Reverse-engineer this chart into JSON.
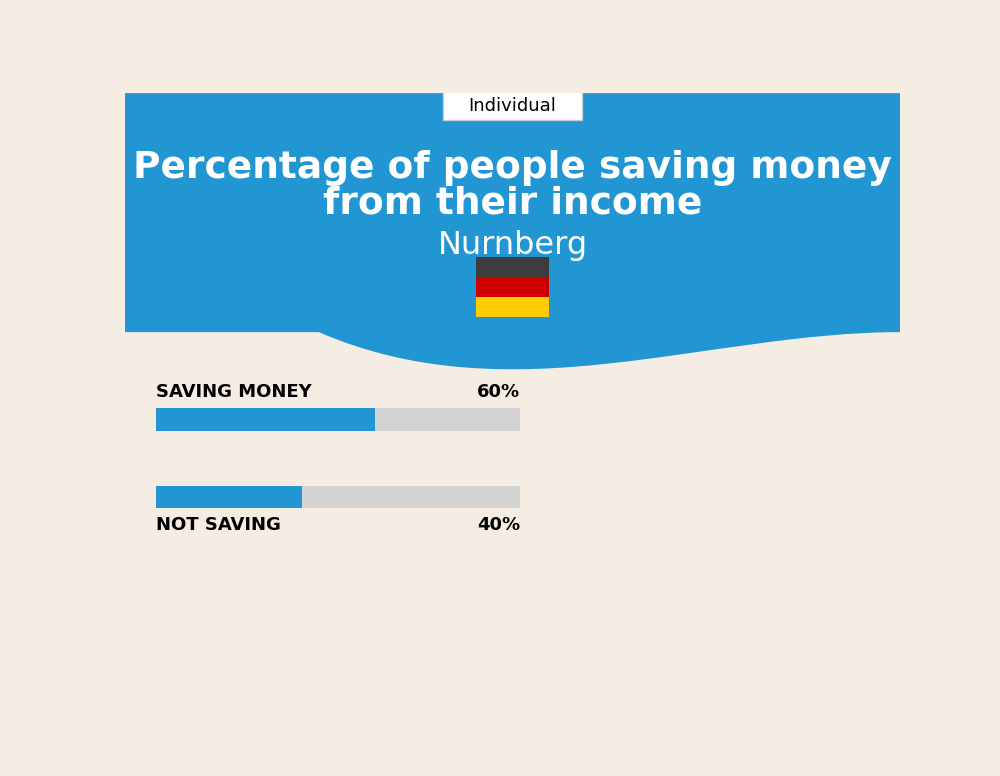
{
  "title_line1": "Percentage of people saving money",
  "title_line2": "from their income",
  "city": "Nurnberg",
  "tab_label": "Individual",
  "saving_label": "SAVING MONEY",
  "saving_value": 60,
  "saving_pct_text": "60%",
  "not_saving_label": "NOT SAVING",
  "not_saving_value": 40,
  "not_saving_pct_text": "40%",
  "bar_color": "#2196D3",
  "bar_bg_color": "#D3D3D3",
  "bg_color_top": "#2196D3",
  "bg_color_bottom": "#F5EDE3",
  "text_color_title": "#FFFFFF",
  "text_color_city": "#FFFFFF",
  "text_color_bar_label": "#000000",
  "tab_bg": "#FFFFFF",
  "flag_colors": [
    "#3D3D3D",
    "#CC0000",
    "#FFCC00"
  ]
}
